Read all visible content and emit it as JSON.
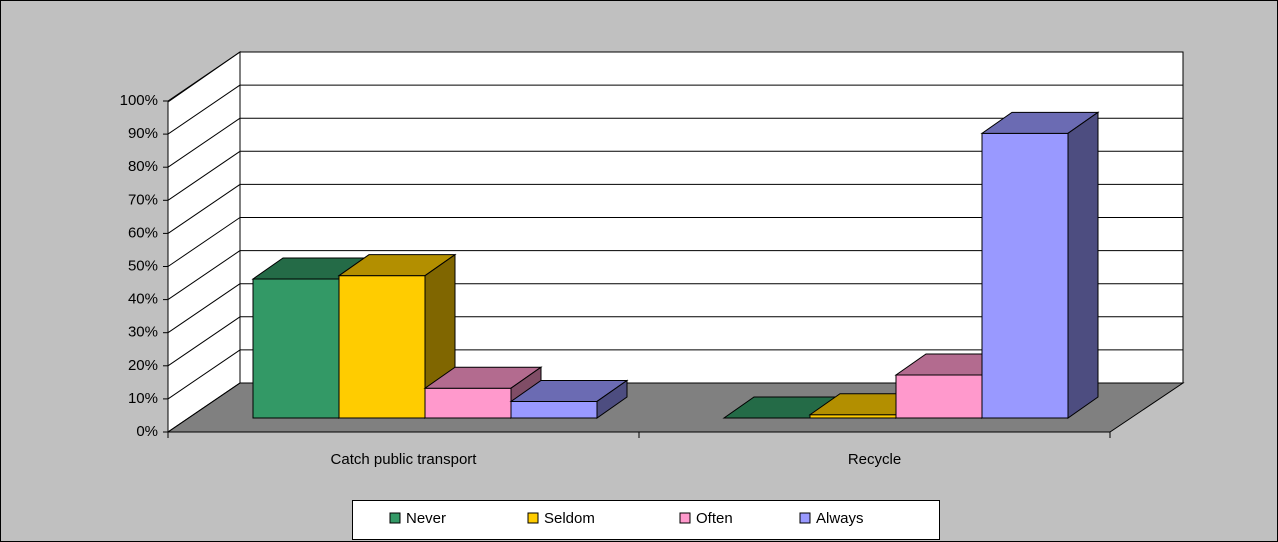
{
  "chart_data": {
    "type": "bar3d",
    "categories": [
      "Catch public transport",
      "Recycle"
    ],
    "series": [
      {
        "name": "Never",
        "color": "#339966",
        "values": [
          42,
          0
        ]
      },
      {
        "name": "Seldom",
        "color": "#ffcc00",
        "values": [
          43,
          1
        ]
      },
      {
        "name": "Often",
        "color": "#ff99cc",
        "values": [
          9,
          13
        ]
      },
      {
        "name": "Always",
        "color": "#9999ff",
        "values": [
          5,
          86
        ]
      }
    ],
    "ylim": [
      0,
      100
    ],
    "yticks": [
      {
        "value": 0,
        "label": "0%"
      },
      {
        "value": 10,
        "label": "10%"
      },
      {
        "value": 20,
        "label": "20%"
      },
      {
        "value": 30,
        "label": "30%"
      },
      {
        "value": 40,
        "label": "40%"
      },
      {
        "value": 50,
        "label": "50%"
      },
      {
        "value": 60,
        "label": "60%"
      },
      {
        "value": 70,
        "label": "70%"
      },
      {
        "value": 80,
        "label": "80%"
      },
      {
        "value": 90,
        "label": "90%"
      },
      {
        "value": 100,
        "label": "100%"
      }
    ],
    "grid": true,
    "legend": "bottom"
  }
}
